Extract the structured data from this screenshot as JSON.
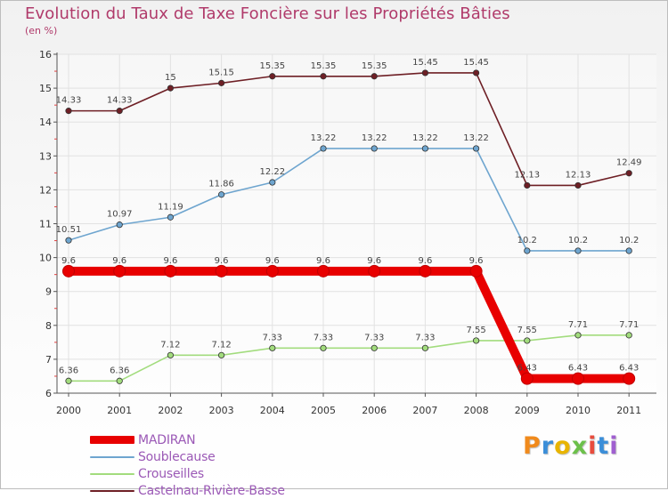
{
  "chart_data": {
    "type": "line",
    "title": "Evolution du Taux de Taxe Foncière sur les Propriétés Bâties",
    "ylabel": "(en %)",
    "x": [
      "2000",
      "2001",
      "2002",
      "2003",
      "2004",
      "2005",
      "2006",
      "2007",
      "2008",
      "2009",
      "2010",
      "2011"
    ],
    "yticks": [
      "6",
      "7",
      "8",
      "9",
      "10",
      "11",
      "12",
      "13",
      "14",
      "15",
      "16"
    ],
    "ylim": [
      6,
      16
    ],
    "series": [
      {
        "name": "Castelnau-Rivière-Basse",
        "color": "#6e1f25",
        "values": [
          14.33,
          14.33,
          15,
          15.15,
          15.35,
          15.35,
          15.35,
          15.45,
          15.45,
          12.13,
          12.13,
          12.49
        ],
        "labels": [
          "14.33",
          "14.33",
          "15",
          "15.15",
          "15.35",
          "15.35",
          "15.35",
          "15.45",
          "15.45",
          "12.13",
          "12.13",
          "12.49"
        ]
      },
      {
        "name": "Soublecause",
        "color": "#6ea5cf",
        "values": [
          10.51,
          10.97,
          11.19,
          11.86,
          12.22,
          13.22,
          13.22,
          13.22,
          13.22,
          10.2,
          10.2,
          10.2
        ],
        "labels": [
          "10.51",
          "10.97",
          "11.19",
          "11.86",
          "12.22",
          "13.22",
          "13.22",
          "13.22",
          "13.22",
          "10.2",
          "10.2",
          "10.2"
        ]
      },
      {
        "name": "Crouseilles",
        "color": "#a2dc7d",
        "values": [
          6.36,
          6.36,
          7.12,
          7.12,
          7.33,
          7.33,
          7.33,
          7.33,
          7.55,
          7.55,
          7.71,
          7.71
        ],
        "labels": [
          "6.36",
          "6.36",
          "7.12",
          "7.12",
          "7.33",
          "7.33",
          "7.33",
          "7.33",
          "7.55",
          "7.55",
          "7.71",
          "7.71"
        ]
      },
      {
        "name": "MADIRAN",
        "color": "#e80000",
        "values": [
          9.6,
          9.6,
          9.6,
          9.6,
          9.6,
          9.6,
          9.6,
          9.6,
          9.6,
          6.43,
          6.43,
          6.43
        ],
        "labels": [
          "9.6",
          "9.6",
          "9.6",
          "9.6",
          "9.6",
          "9.6",
          "9.6",
          "9.6",
          "9.6",
          "6.43",
          "6.43",
          "6.43"
        ]
      }
    ],
    "legend": [
      "MADIRAN",
      "Soublecause",
      "Crouseilles",
      "Castelnau-Rivière-Basse"
    ]
  },
  "logo": {
    "text": "Proxiti"
  }
}
